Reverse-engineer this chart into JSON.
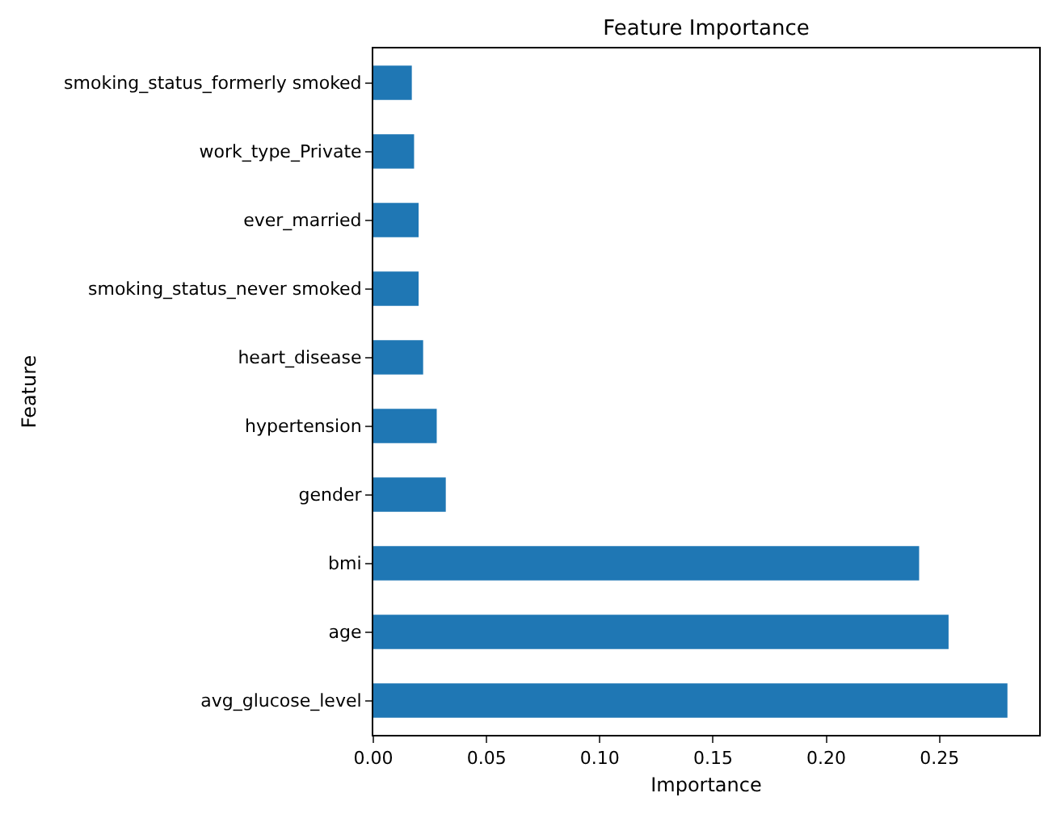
{
  "chart_data": {
    "type": "bar",
    "orientation": "horizontal",
    "title": "Feature Importance",
    "xlabel": "Importance",
    "ylabel": "Feature",
    "categories": [
      "smoking_status_formerly smoked",
      "work_type_Private",
      "ever_married",
      "smoking_status_never smoked",
      "heart_disease",
      "hypertension",
      "gender",
      "bmi",
      "age",
      "avg_glucose_level"
    ],
    "values": [
      0.017,
      0.018,
      0.02,
      0.02,
      0.022,
      0.028,
      0.032,
      0.241,
      0.254,
      0.28
    ],
    "color": "#1f77b4",
    "xlim": [
      0,
      0.294
    ],
    "xticks": [
      {
        "value": 0,
        "label": "0.00"
      },
      {
        "value": 0.05,
        "label": "0.05"
      },
      {
        "value": 0.1,
        "label": "0.10"
      },
      {
        "value": 0.15,
        "label": "0.15"
      },
      {
        "value": 0.2,
        "label": "0.20"
      },
      {
        "value": 0.25,
        "label": "0.25"
      }
    ]
  }
}
